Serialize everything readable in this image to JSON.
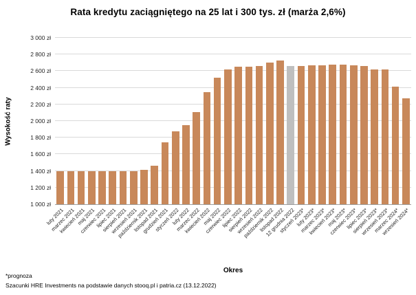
{
  "chart_data": {
    "type": "bar",
    "title": "Rata kredytu zaciągniętego na 25 lat i 300 tys. zł (marża 2,6%)",
    "xlabel": "Okres",
    "ylabel": "Wysokość raty",
    "ylim": [
      1000,
      3000
    ],
    "grid": true,
    "bar_color": "#c8885a",
    "highlight_color": "#bfbfbf",
    "highlight_index": 22,
    "ytick_values": [
      3000,
      2800,
      2600,
      2400,
      2200,
      2000,
      1800,
      1600,
      1400,
      1200,
      1000
    ],
    "ytick_labels": [
      "3 000 zł",
      "2 800 zł",
      "2 600 zł",
      "2 400 zł",
      "2 200 zł",
      "2 000 zł",
      "1 800 zł",
      "1 600 zł",
      "1 400 zł",
      "1 200 zł",
      "1 000 zł"
    ],
    "categories": [
      "luty 2021",
      "marzec 2021",
      "kwiecień 2021",
      "maj 2021",
      "czerwiec 2021",
      "lipiec 2021",
      "sierpień 2021",
      "wrzesień 2021",
      "październik 2021",
      "listopad 2021",
      "grudzień 2021",
      "styczeń 2022",
      "luty 2022",
      "marzec 2022",
      "kwiecień 2022",
      "maj 2022",
      "czerwiec 2022",
      "lipiec 2022",
      "sierpień 2022",
      "wrzesień 2022",
      "październik 2022",
      "listopad 2022",
      "12 grudnia 2022",
      "styczeń 2023*",
      "luty 2023*",
      "marzec 2023*",
      "kwiecień 2023*",
      "maj 2023*",
      "czerwiec 2023*",
      "lipiec 2023*",
      "sierpień 2023*",
      "wrzesień 2023*",
      "marzec 2024*",
      "wrzesień 2024*"
    ],
    "values": [
      1400,
      1400,
      1400,
      1400,
      1400,
      1400,
      1400,
      1400,
      1410,
      1460,
      1740,
      1880,
      1950,
      2110,
      2350,
      2520,
      2620,
      2650,
      2650,
      2660,
      2700,
      2730,
      2660,
      2660,
      2670,
      2670,
      2680,
      2680,
      2670,
      2660,
      2620,
      2620,
      2410,
      2270
    ]
  },
  "footnotes": {
    "forecast_note": "*prognoza",
    "source": "Szacunki HRE Investments na podstawie danych stooq.pl i patria.cz (13.12.2022)"
  }
}
